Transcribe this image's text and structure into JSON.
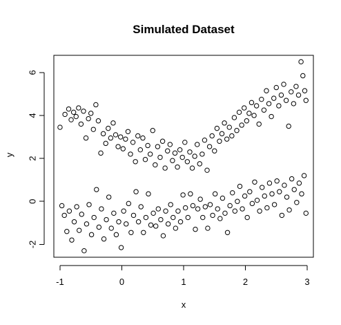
{
  "chart_data": {
    "type": "scatter",
    "title": "Simulated Dataset",
    "xlabel": "x",
    "ylabel": "y",
    "xlim": [
      -1.1,
      3.1
    ],
    "ylim": [
      -2.6,
      6.8
    ],
    "x_ticks": [
      -1,
      0,
      1,
      2,
      3
    ],
    "y_ticks": [
      -2,
      0,
      2,
      4,
      6
    ],
    "grid": false,
    "legend": "none",
    "marker": "open-circle",
    "color": "#000000",
    "series": [
      {
        "values": [
          [
            -1.0,
            3.45
          ],
          [
            -0.92,
            4.05
          ],
          [
            -0.86,
            4.3
          ],
          [
            -0.82,
            3.8
          ],
          [
            -0.78,
            4.15
          ],
          [
            -0.74,
            3.95
          ],
          [
            -0.7,
            4.35
          ],
          [
            -0.66,
            3.6
          ],
          [
            -0.62,
            4.2
          ],
          [
            -0.58,
            2.95
          ],
          [
            -0.54,
            3.85
          ],
          [
            -0.5,
            4.1
          ],
          [
            -0.46,
            3.35
          ],
          [
            -0.42,
            4.5
          ],
          [
            -0.38,
            3.75
          ],
          [
            -0.34,
            2.25
          ],
          [
            -0.3,
            3.15
          ],
          [
            -0.26,
            2.7
          ],
          [
            -0.22,
            3.4
          ],
          [
            -0.18,
            2.95
          ],
          [
            -0.14,
            3.65
          ],
          [
            -0.1,
            3.1
          ],
          [
            -0.06,
            2.55
          ],
          [
            -0.02,
            3.0
          ],
          [
            0.02,
            2.45
          ],
          [
            0.06,
            2.9
          ],
          [
            0.1,
            3.25
          ],
          [
            0.14,
            2.2
          ],
          [
            0.18,
            2.75
          ],
          [
            0.22,
            1.85
          ],
          [
            0.26,
            3.05
          ],
          [
            0.3,
            2.4
          ],
          [
            0.34,
            2.95
          ],
          [
            0.38,
            1.95
          ],
          [
            0.42,
            2.6
          ],
          [
            0.46,
            2.2
          ],
          [
            0.5,
            3.3
          ],
          [
            0.54,
            1.7
          ],
          [
            0.58,
            2.55
          ],
          [
            0.62,
            2.05
          ],
          [
            0.66,
            2.8
          ],
          [
            0.7,
            1.55
          ],
          [
            0.74,
            2.35
          ],
          [
            0.78,
            2.65
          ],
          [
            0.82,
            1.9
          ],
          [
            0.86,
            2.25
          ],
          [
            0.9,
            1.6
          ],
          [
            0.94,
            2.4
          ],
          [
            0.98,
            2.05
          ],
          [
            1.02,
            2.75
          ],
          [
            1.06,
            1.85
          ],
          [
            1.1,
            2.3
          ],
          [
            1.14,
            1.55
          ],
          [
            1.18,
            2.1
          ],
          [
            1.22,
            2.65
          ],
          [
            1.26,
            1.75
          ],
          [
            1.3,
            2.2
          ],
          [
            1.34,
            2.85
          ],
          [
            1.38,
            1.45
          ],
          [
            1.42,
            2.55
          ],
          [
            1.46,
            3.05
          ],
          [
            1.5,
            2.35
          ],
          [
            1.54,
            3.4
          ],
          [
            1.58,
            2.8
          ],
          [
            1.62,
            3.15
          ],
          [
            1.66,
            3.65
          ],
          [
            1.7,
            2.9
          ],
          [
            1.74,
            3.45
          ],
          [
            1.78,
            3.05
          ],
          [
            1.82,
            3.9
          ],
          [
            1.86,
            3.3
          ],
          [
            1.9,
            4.15
          ],
          [
            1.94,
            3.55
          ],
          [
            1.98,
            4.35
          ],
          [
            2.02,
            3.75
          ],
          [
            2.06,
            4.1
          ],
          [
            2.1,
            4.6
          ],
          [
            2.14,
            4.0
          ],
          [
            2.18,
            4.45
          ],
          [
            2.22,
            3.6
          ],
          [
            2.26,
            4.75
          ],
          [
            2.3,
            4.25
          ],
          [
            2.34,
            5.15
          ],
          [
            2.38,
            4.55
          ],
          [
            2.42,
            3.95
          ],
          [
            2.46,
            4.8
          ],
          [
            2.5,
            5.3
          ],
          [
            2.54,
            4.45
          ],
          [
            2.58,
            4.95
          ],
          [
            2.62,
            5.45
          ],
          [
            2.66,
            4.7
          ],
          [
            2.7,
            3.5
          ],
          [
            2.74,
            5.1
          ],
          [
            2.78,
            4.55
          ],
          [
            2.82,
            5.35
          ],
          [
            2.86,
            4.95
          ],
          [
            2.9,
            6.5
          ],
          [
            2.93,
            5.85
          ],
          [
            2.96,
            5.15
          ],
          [
            2.98,
            4.7
          ],
          [
            -0.97,
            -0.2
          ],
          [
            -0.93,
            -0.65
          ],
          [
            -0.89,
            -1.4
          ],
          [
            -0.85,
            -0.45
          ],
          [
            -0.81,
            -1.8
          ],
          [
            -0.77,
            -0.95
          ],
          [
            -0.73,
            -0.25
          ],
          [
            -0.69,
            -1.35
          ],
          [
            -0.65,
            -0.6
          ],
          [
            -0.61,
            -2.3
          ],
          [
            -0.57,
            -1.05
          ],
          [
            -0.53,
            -0.15
          ],
          [
            -0.49,
            -1.55
          ],
          [
            -0.45,
            -0.75
          ],
          [
            -0.41,
            0.55
          ],
          [
            -0.37,
            -1.2
          ],
          [
            -0.33,
            -0.35
          ],
          [
            -0.29,
            -1.75
          ],
          [
            -0.25,
            -0.85
          ],
          [
            -0.21,
            0.2
          ],
          [
            -0.17,
            -1.25
          ],
          [
            -0.13,
            -0.55
          ],
          [
            -0.09,
            -1.55
          ],
          [
            -0.05,
            -0.95
          ],
          [
            -0.01,
            -2.15
          ],
          [
            0.03,
            -0.45
          ],
          [
            0.07,
            -1.05
          ],
          [
            0.11,
            -0.1
          ],
          [
            0.15,
            -1.45
          ],
          [
            0.19,
            -0.65
          ],
          [
            0.23,
            0.45
          ],
          [
            0.27,
            -0.95
          ],
          [
            0.31,
            -0.25
          ],
          [
            0.35,
            -1.45
          ],
          [
            0.39,
            -0.75
          ],
          [
            0.43,
            0.35
          ],
          [
            0.47,
            -1.1
          ],
          [
            0.51,
            -0.55
          ],
          [
            0.55,
            -1.15
          ],
          [
            0.59,
            -0.35
          ],
          [
            0.63,
            -0.85
          ],
          [
            0.67,
            -1.6
          ],
          [
            0.71,
            -0.45
          ],
          [
            0.75,
            -1.05
          ],
          [
            0.79,
            -0.15
          ],
          [
            0.83,
            -0.75
          ],
          [
            0.87,
            -1.25
          ],
          [
            0.91,
            -0.45
          ],
          [
            0.95,
            -0.95
          ],
          [
            0.99,
            0.3
          ],
          [
            1.03,
            -0.3
          ],
          [
            1.07,
            -0.75
          ],
          [
            1.11,
            0.35
          ],
          [
            1.15,
            -0.2
          ],
          [
            1.19,
            -1.3
          ],
          [
            1.23,
            -0.35
          ],
          [
            1.27,
            0.1
          ],
          [
            1.31,
            -0.75
          ],
          [
            1.35,
            -0.25
          ],
          [
            1.39,
            -1.25
          ],
          [
            1.43,
            -0.15
          ],
          [
            1.47,
            -0.65
          ],
          [
            1.51,
            0.35
          ],
          [
            1.55,
            -0.35
          ],
          [
            1.59,
            -0.8
          ],
          [
            1.63,
            0.15
          ],
          [
            1.67,
            -0.55
          ],
          [
            1.71,
            -1.45
          ],
          [
            1.75,
            -0.2
          ],
          [
            1.79,
            0.4
          ],
          [
            1.83,
            -0.45
          ],
          [
            1.87,
            0.0
          ],
          [
            1.91,
            0.7
          ],
          [
            1.95,
            -0.35
          ],
          [
            1.99,
            0.25
          ],
          [
            2.03,
            -0.75
          ],
          [
            2.07,
            0.45
          ],
          [
            2.11,
            -0.1
          ],
          [
            2.15,
            0.9
          ],
          [
            2.19,
            0.05
          ],
          [
            2.23,
            -0.45
          ],
          [
            2.27,
            0.65
          ],
          [
            2.31,
            0.25
          ],
          [
            2.35,
            -0.3
          ],
          [
            2.39,
            0.85
          ],
          [
            2.43,
            0.35
          ],
          [
            2.47,
            -0.15
          ],
          [
            2.51,
            0.95
          ],
          [
            2.55,
            0.45
          ],
          [
            2.59,
            -0.65
          ],
          [
            2.63,
            0.75
          ],
          [
            2.67,
            0.2
          ],
          [
            2.71,
            -0.4
          ],
          [
            2.75,
            1.05
          ],
          [
            2.79,
            0.55
          ],
          [
            2.83,
            -0.05
          ],
          [
            2.87,
            0.85
          ],
          [
            2.91,
            0.35
          ],
          [
            2.95,
            1.2
          ],
          [
            2.98,
            -0.55
          ]
        ]
      }
    ]
  }
}
